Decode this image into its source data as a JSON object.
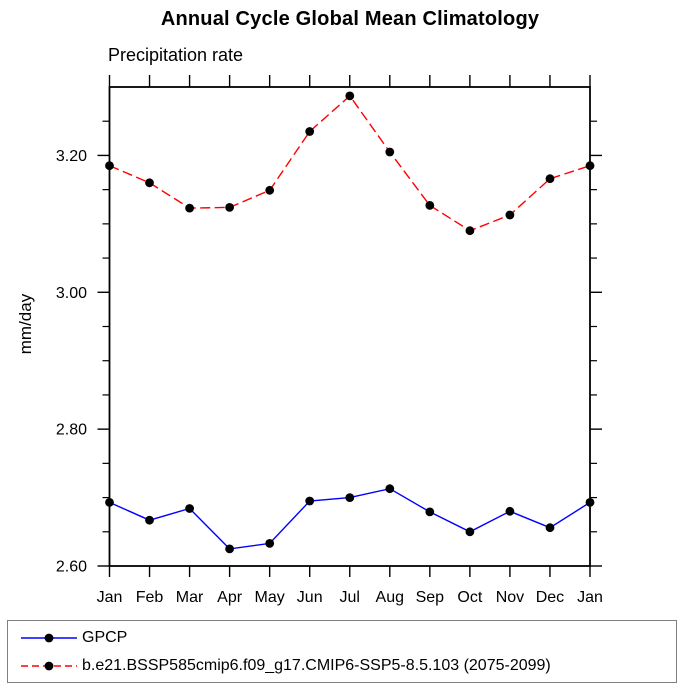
{
  "chart_data": {
    "type": "line",
    "title": "Annual Cycle Global Mean Climatology",
    "subtitle": "Precipitation rate",
    "xlabel": "",
    "ylabel": "mm/day",
    "categories": [
      "Jan",
      "Feb",
      "Mar",
      "Apr",
      "May",
      "Jun",
      "Jul",
      "Aug",
      "Sep",
      "Oct",
      "Nov",
      "Dec",
      "Jan"
    ],
    "series": [
      {
        "id": "gpcp",
        "name": "GPCP",
        "color": "#0000ff",
        "line_style": "solid",
        "dash": "",
        "legend_dash": "",
        "marker": "circle",
        "marker_color": "#000000",
        "values": [
          2.693,
          2.667,
          2.684,
          2.625,
          2.633,
          2.695,
          2.7,
          2.713,
          2.679,
          2.65,
          2.68,
          2.656,
          2.693
        ]
      },
      {
        "id": "model",
        "name": "b.e21.BSSP585cmip6.f09_g17.CMIP6-SSP5-8.5.103 (2075-2099)",
        "color": "#ff0000",
        "line_style": "dashed",
        "dash": "10 4.5",
        "legend_dash": "7 4",
        "marker": "circle",
        "marker_color": "#000000",
        "values": [
          3.185,
          3.16,
          3.123,
          3.124,
          3.149,
          3.235,
          3.287,
          3.205,
          3.127,
          3.09,
          3.113,
          3.166,
          3.185
        ]
      }
    ],
    "ylim": [
      2.6,
      3.3
    ],
    "ytick_values": [
      2.6,
      2.8,
      3.0,
      3.2
    ],
    "ytick_labels": [
      "2.60",
      "2.80",
      "3.00",
      "3.20"
    ],
    "minor_tick_step": 0.05,
    "grid": false,
    "legend_position": "bottom-left-box"
  }
}
